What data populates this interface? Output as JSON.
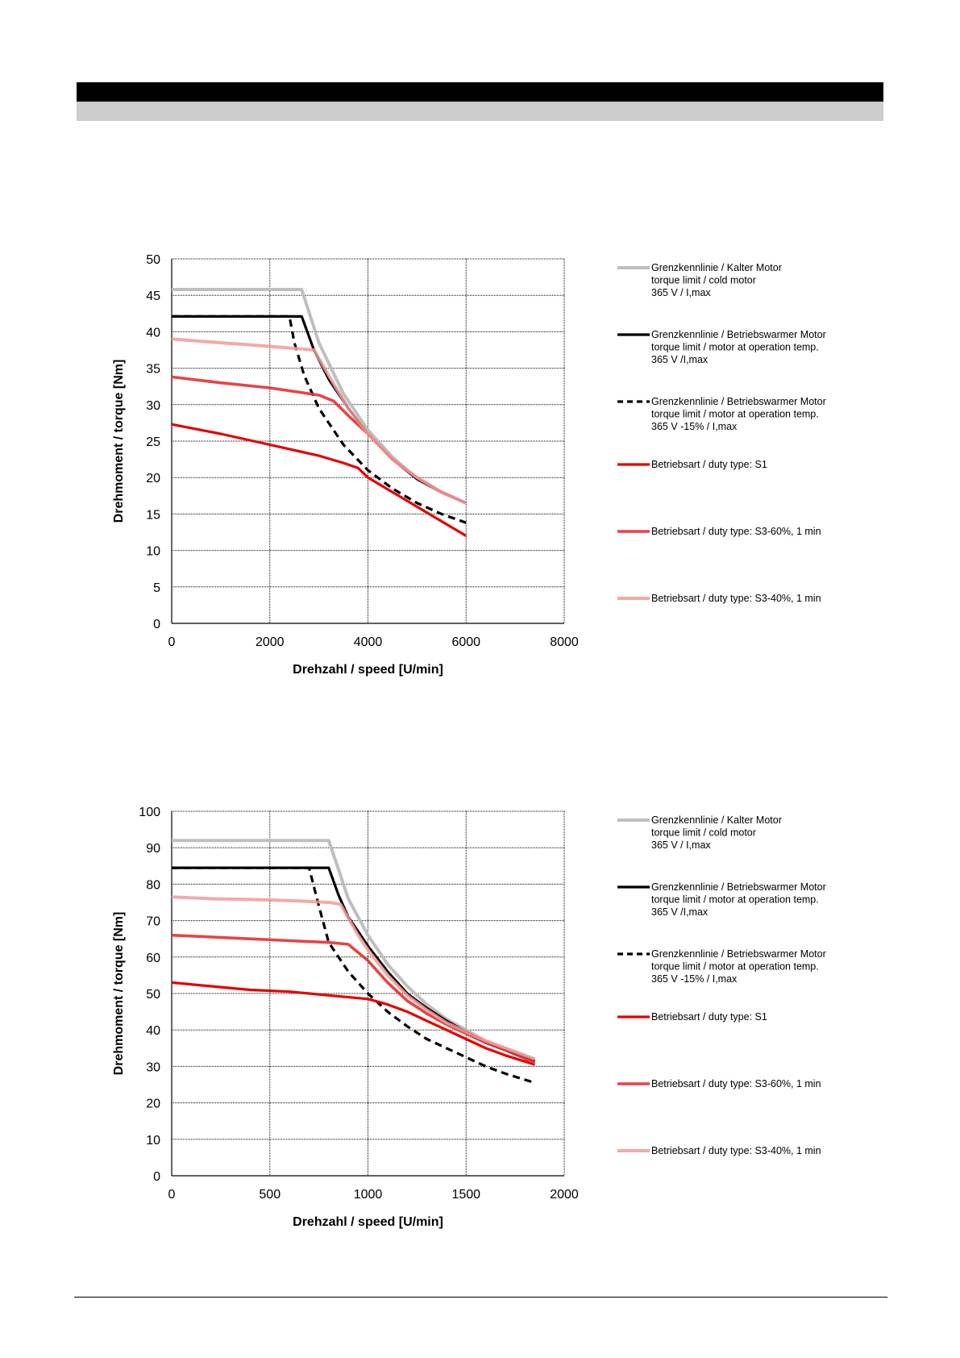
{
  "colors": {
    "cold_motor": "#bfbfbf",
    "warm_motor": "#000000",
    "warm_motor_minus15": "#000000",
    "s1": "#e60000",
    "s3_60": "#e53030",
    "s3_40": "#f29a9a"
  },
  "legend": [
    {
      "key": "cold_motor",
      "lines": [
        "Grenzkennlinie / Kalter Motor",
        "torque limit / cold  motor",
        "365 V / I,max"
      ]
    },
    {
      "key": "warm_motor",
      "lines": [
        "Grenzkennlinie / Betriebswarmer Motor",
        "torque limit / motor at operation temp.",
        "365 V /I,max"
      ]
    },
    {
      "key": "warm_motor_minus15",
      "lines": [
        "Grenzkennlinie / Betriebswarmer Motor",
        "torque limit / motor at operation temp.",
        "365 V  -15% / I,max"
      ]
    },
    {
      "key": "s1",
      "lines": [
        "Betriebsart / duty type: S1"
      ]
    },
    {
      "key": "s3_60",
      "lines": [
        "Betriebsart / duty type: S3-60%, 1 min"
      ]
    },
    {
      "key": "s3_40",
      "lines": [
        "Betriebsart / duty type: S3-40%, 1 min"
      ]
    }
  ],
  "chart_data": [
    {
      "type": "line",
      "xlabel": "Drehzahl / speed [U/min]",
      "ylabel": "Drehmoment / torque [Nm]",
      "xlim": [
        0,
        8000
      ],
      "ylim": [
        0,
        50
      ],
      "xticks": [
        "0",
        "2000",
        "4000",
        "6000",
        "8000"
      ],
      "yticks": [
        "0",
        "5",
        "10",
        "15",
        "20",
        "25",
        "30",
        "35",
        "40",
        "45",
        "50"
      ],
      "grid": true,
      "legend_position": "right",
      "series": [
        {
          "name": "Grenzkennlinie / Kalter Motor",
          "key": "cold_motor",
          "x": [
            0,
            2650,
            3000,
            3500,
            4000,
            4500,
            5000,
            5500,
            6000
          ],
          "y": [
            45.8,
            45.8,
            38.5,
            31.5,
            26.5,
            22.8,
            19.8,
            18.0,
            16.5
          ]
        },
        {
          "name": "Grenzkennlinie / Betriebswarmer Motor",
          "key": "warm_motor",
          "x": [
            0,
            2650,
            2900,
            3200,
            3600,
            4000,
            4500,
            5000,
            5500,
            6000
          ],
          "y": [
            42.1,
            42.1,
            37.5,
            33.5,
            29.5,
            26.0,
            22.5,
            19.8,
            18.0,
            16.5
          ]
        },
        {
          "name": "Grenzkennlinie / Betriebswarmer Motor -15%",
          "key": "warm_motor_minus15",
          "x": [
            0,
            2400,
            2500,
            2700,
            3000,
            3500,
            4000,
            4500,
            5000,
            5500,
            6000
          ],
          "y": [
            42.1,
            42.1,
            38.5,
            34.0,
            29.5,
            24.5,
            21.0,
            18.5,
            16.5,
            15.0,
            13.8
          ]
        },
        {
          "name": "Betriebsart / duty type: S1",
          "key": "s1",
          "x": [
            0,
            1000,
            2000,
            3000,
            3500,
            3800,
            4000,
            5000,
            6000
          ],
          "y": [
            27.3,
            26.0,
            24.5,
            23.0,
            22.0,
            21.3,
            20.0,
            16.0,
            12.0
          ]
        },
        {
          "name": "Betriebsart / duty type: S3-60%, 1 min",
          "key": "s3_60",
          "x": [
            0,
            1000,
            2000,
            3000,
            3300,
            3600,
            4000,
            4500,
            5000,
            5500,
            6000
          ],
          "y": [
            33.8,
            33.0,
            32.3,
            31.3,
            30.5,
            28.5,
            26.0,
            22.5,
            20.0,
            18.0,
            16.5
          ]
        },
        {
          "name": "Betriebsart / duty type: S3-40%, 1 min",
          "key": "s3_40",
          "x": [
            0,
            1000,
            2000,
            2900,
            3200,
            3600,
            4000,
            4500,
            5000,
            5500,
            6000
          ],
          "y": [
            39.0,
            38.5,
            38.0,
            37.5,
            34.0,
            29.5,
            26.0,
            22.5,
            20.0,
            18.0,
            16.5
          ]
        }
      ]
    },
    {
      "type": "line",
      "xlabel": "Drehzahl / speed [U/min]",
      "ylabel": "Drehmoment / torque [Nm]",
      "xlim": [
        0,
        2000
      ],
      "ylim": [
        0,
        100
      ],
      "xticks": [
        "0",
        "500",
        "1000",
        "1500",
        "2000"
      ],
      "yticks": [
        "0",
        "10",
        "20",
        "30",
        "40",
        "50",
        "60",
        "70",
        "80",
        "90",
        "100"
      ],
      "grid": true,
      "legend_position": "right",
      "series": [
        {
          "name": "Grenzkennlinie / Kalter Motor",
          "key": "cold_motor",
          "x": [
            0,
            800,
            850,
            900,
            1000,
            1100,
            1200,
            1300,
            1400,
            1500,
            1600,
            1700,
            1850
          ],
          "y": [
            92,
            92,
            84,
            76,
            66,
            58,
            52,
            47,
            43,
            40,
            37,
            35,
            32
          ]
        },
        {
          "name": "Grenzkennlinie / Betriebswarmer Motor",
          "key": "warm_motor",
          "x": [
            0,
            800,
            850,
            900,
            1000,
            1100,
            1200,
            1300,
            1400,
            1500,
            1600,
            1700,
            1850
          ],
          "y": [
            84.5,
            84.5,
            77,
            71,
            63,
            56,
            50,
            46,
            42.5,
            39.5,
            36.5,
            34.5,
            31.5
          ]
        },
        {
          "name": "Grenzkennlinie / Betriebswarmer Motor -15%",
          "key": "warm_motor_minus15",
          "x": [
            0,
            700,
            750,
            800,
            900,
            1000,
            1100,
            1200,
            1300,
            1400,
            1500,
            1600,
            1700,
            1850
          ],
          "y": [
            84.5,
            84.5,
            74,
            64,
            56,
            50,
            45,
            41,
            37.5,
            35,
            32.5,
            30,
            28,
            25.5
          ]
        },
        {
          "name": "Betriebsart / duty type: S1",
          "key": "s1",
          "x": [
            0,
            200,
            400,
            600,
            800,
            1000,
            1100,
            1200,
            1300,
            1400,
            1500,
            1600,
            1700,
            1850
          ],
          "y": [
            53,
            52,
            51,
            50.5,
            49.5,
            48.5,
            47,
            45,
            42.5,
            40,
            37.5,
            35,
            33,
            30.5
          ]
        },
        {
          "name": "Betriebsart / duty type: S3-60%, 1 min",
          "key": "s3_60",
          "x": [
            0,
            200,
            400,
            600,
            800,
            900,
            1000,
            1100,
            1200,
            1300,
            1400,
            1500,
            1600,
            1700,
            1850
          ],
          "y": [
            66,
            65.5,
            65,
            64.5,
            64,
            63.5,
            59,
            53,
            48,
            44.5,
            41.5,
            39,
            36.5,
            34.5,
            31
          ]
        },
        {
          "name": "Betriebsart / duty type: S3-40%, 1 min",
          "key": "s3_40",
          "x": [
            0,
            200,
            400,
            600,
            800,
            860,
            950,
            1000,
            1100,
            1200,
            1300,
            1400,
            1500,
            1600,
            1700,
            1850
          ],
          "y": [
            76.5,
            76,
            75.8,
            75.5,
            75,
            74.5,
            66,
            62,
            55,
            49.5,
            45.5,
            42,
            39.5,
            37,
            35,
            32
          ]
        }
      ]
    }
  ]
}
